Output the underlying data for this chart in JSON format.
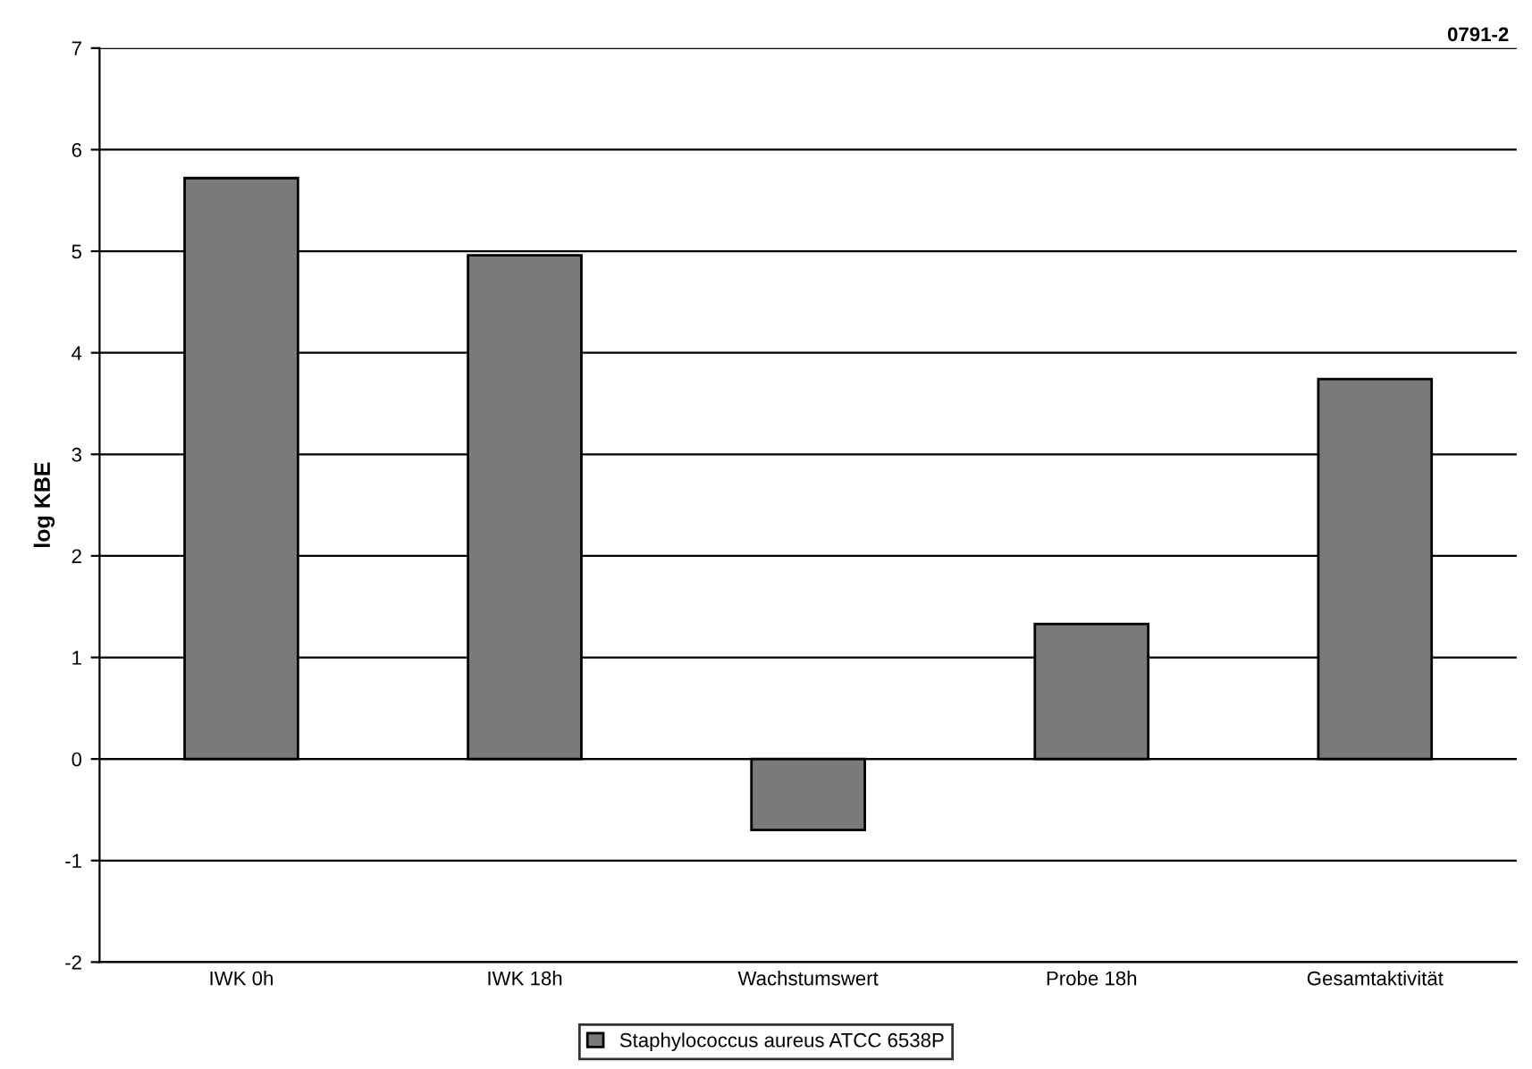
{
  "chart_data": {
    "type": "bar",
    "ylabel": "log KBE",
    "annotations": [
      "0791-2"
    ],
    "categories": [
      "IWK 0h",
      "IWK 18h",
      "Wachstumswert",
      "Probe 18h",
      "Gesamtaktivität"
    ],
    "series": [
      {
        "name": "Staphylococcus aureus ATCC 6538P",
        "color": "#7a7a7a",
        "values": [
          5.72,
          4.96,
          -0.7,
          1.33,
          3.74
        ]
      }
    ],
    "ylim": [
      -2,
      7
    ],
    "yticks": [
      -2,
      -1,
      0,
      1,
      2,
      3,
      4,
      5,
      6,
      7
    ],
    "grid": "y",
    "legend": "bottom"
  }
}
